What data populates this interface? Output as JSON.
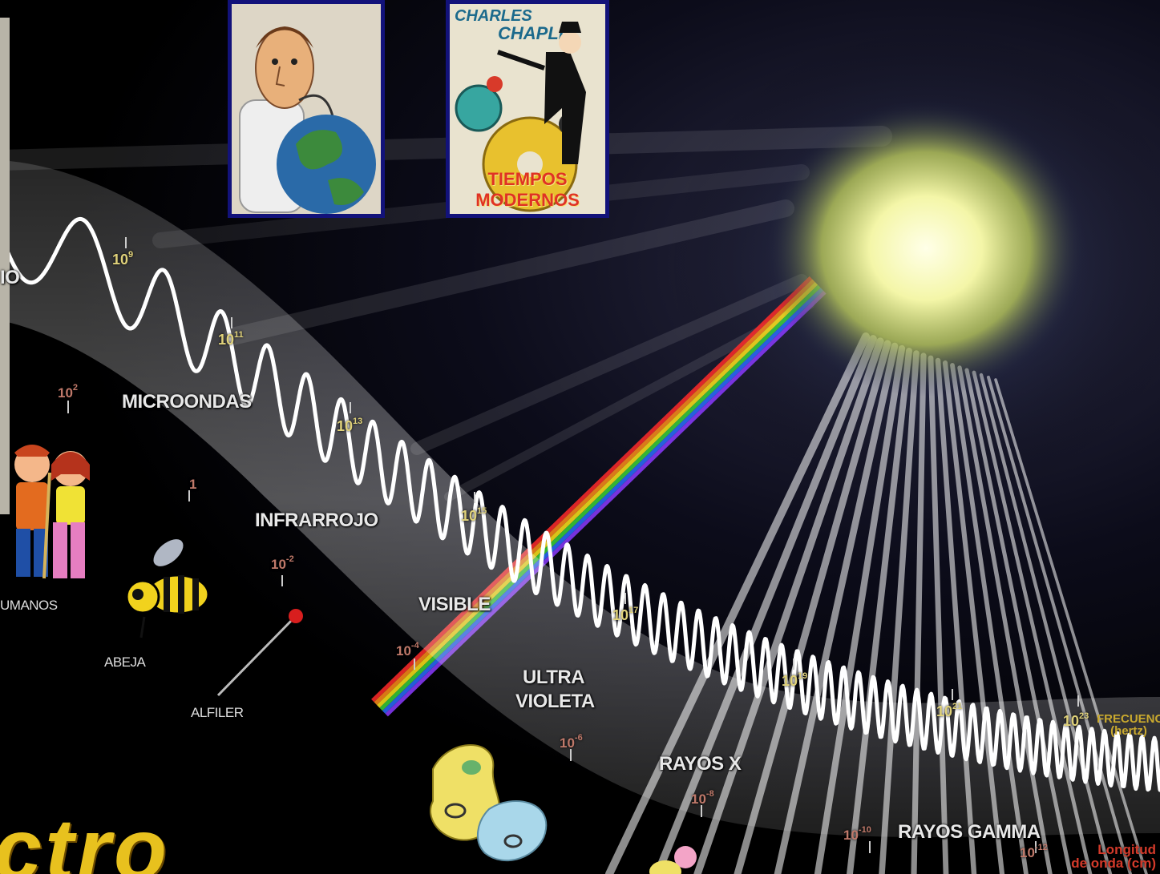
{
  "bands": {
    "radio_partial": "IO",
    "microwaves": "MICROONDAS",
    "infrared": "INFRARROJO",
    "visible": "VISIBLE",
    "uv_line1": "ULTRA",
    "uv_line2": "VIOLETA",
    "xrays": "RAYOS X",
    "gamma": "RAYOS GAMMA"
  },
  "scale_objects": {
    "humans_partial": "UMANOS",
    "bee": "ABEJA",
    "pin": "ALFILER"
  },
  "frequency_ticks": [
    {
      "base": "10",
      "exp": "9"
    },
    {
      "base": "10",
      "exp": "11"
    },
    {
      "base": "10",
      "exp": "13"
    },
    {
      "base": "10",
      "exp": "15"
    },
    {
      "base": "10",
      "exp": "17"
    },
    {
      "base": "10",
      "exp": "19"
    },
    {
      "base": "10",
      "exp": "21"
    },
    {
      "base": "10",
      "exp": "23"
    }
  ],
  "wavelength_ticks": [
    {
      "base": "10",
      "exp": "2"
    },
    {
      "base": "1",
      "exp": ""
    },
    {
      "base": "10",
      "exp": "-2"
    },
    {
      "base": "10",
      "exp": "-4"
    },
    {
      "base": "10",
      "exp": "-6"
    },
    {
      "base": "10",
      "exp": "-8"
    },
    {
      "base": "10",
      "exp": "-10"
    },
    {
      "base": "10",
      "exp": "-12"
    }
  ],
  "axis_captions": {
    "frequency_line1": "FRECUENCIA",
    "frequency_line2": "(hertz)",
    "wavelength_line1": "Longitud",
    "wavelength_line2": "de onda (cm)"
  },
  "posters": {
    "chaplin_line1": "CHARLES",
    "chaplin_line2": "CHAPLIN",
    "chaplin_subtitle": "TIEMPOS MODERNOS"
  },
  "title_fragment": "ctro",
  "colors": {
    "poster_border": "#12127a",
    "frequency_label": "#e0d27a",
    "wavelength_label": "#c0796a",
    "title": "#e8c11e"
  }
}
